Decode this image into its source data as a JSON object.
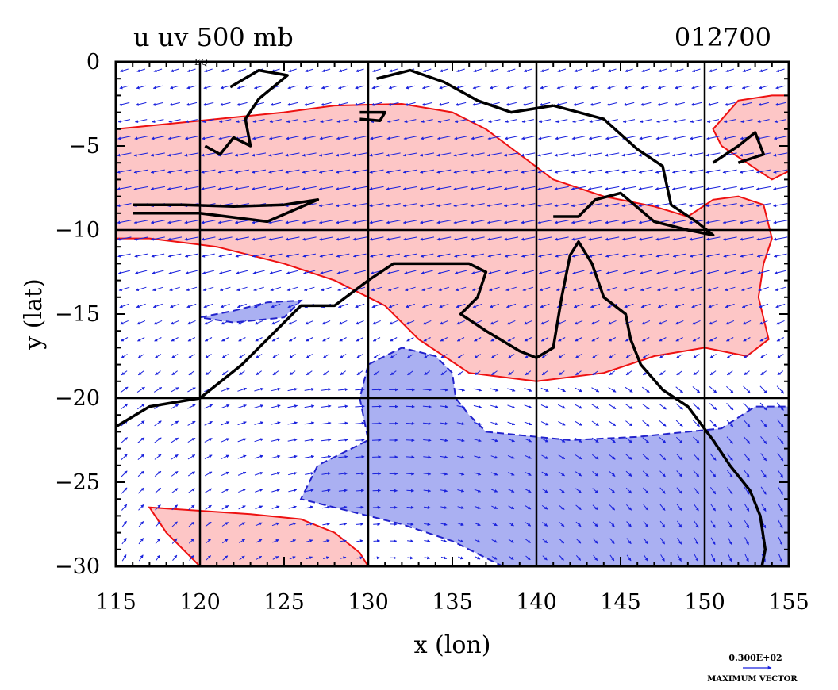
{
  "plot": {
    "title": "u uv 500 mb",
    "date": "012700",
    "xlabel": "x (lon)",
    "ylabel": "y (lat)",
    "grid_label": "EQ",
    "vector_value": "0.300E+02",
    "vector_caption": "MAXIMUM VECTOR"
  },
  "colors": {
    "positive_fill": "#fdc6c6",
    "positive_line": "#ee1111",
    "negative_fill": "#aab0f2",
    "negative_line": "#2222cc",
    "vector": "#1a22dd",
    "coast": "#000000"
  },
  "chart_data": {
    "type": "map",
    "x_ticks": [
      115,
      120,
      125,
      130,
      135,
      140,
      145,
      150,
      155
    ],
    "y_ticks": [
      0,
      -5,
      -10,
      -15,
      -20,
      -25,
      -30
    ],
    "x_range": [
      115,
      155
    ],
    "y_range": [
      -30,
      0
    ],
    "grid_lon": [
      120,
      130,
      140,
      150
    ],
    "grid_lat": [
      -10,
      -20
    ],
    "positive_regions": [
      [
        [
          115,
          -4
        ],
        [
          120,
          -3.5
        ],
        [
          125,
          -3
        ],
        [
          128,
          -2.6
        ],
        [
          132,
          -2.5
        ],
        [
          135,
          -3
        ],
        [
          137,
          -4
        ],
        [
          139,
          -5.5
        ],
        [
          141,
          -7
        ],
        [
          144,
          -8
        ],
        [
          147,
          -8.6
        ],
        [
          149,
          -9.2
        ],
        [
          150.5,
          -8.2
        ],
        [
          152,
          -8
        ],
        [
          153.5,
          -8.5
        ],
        [
          154,
          -10.5
        ],
        [
          153.5,
          -12
        ],
        [
          153.2,
          -14
        ],
        [
          153.8,
          -16.5
        ],
        [
          152.5,
          -17.5
        ],
        [
          150,
          -17
        ],
        [
          147,
          -17.5
        ],
        [
          144,
          -18.5
        ],
        [
          140,
          -19
        ],
        [
          136,
          -18.5
        ],
        [
          133,
          -16.5
        ],
        [
          131,
          -14.5
        ],
        [
          128,
          -13
        ],
        [
          125,
          -12
        ],
        [
          121,
          -11
        ],
        [
          117,
          -10.5
        ],
        [
          115,
          -10.5
        ]
      ],
      [
        [
          150.5,
          -4
        ],
        [
          152,
          -2.3
        ],
        [
          154,
          -2
        ],
        [
          155,
          -2
        ],
        [
          155,
          -6.5
        ],
        [
          154,
          -7
        ],
        [
          152.5,
          -6
        ],
        [
          151,
          -5
        ]
      ],
      [
        [
          117,
          -26.5
        ],
        [
          120,
          -26.7
        ],
        [
          123,
          -26.9
        ],
        [
          126,
          -27.2
        ],
        [
          128,
          -28
        ],
        [
          129.5,
          -29.2
        ],
        [
          130,
          -30
        ],
        [
          120,
          -30
        ],
        [
          118,
          -28
        ]
      ]
    ],
    "negative_regions": [
      [
        [
          130,
          -18
        ],
        [
          132,
          -17
        ],
        [
          134,
          -17.5
        ],
        [
          135,
          -18.5
        ],
        [
          135.2,
          -20
        ],
        [
          136,
          -21
        ],
        [
          137,
          -22
        ],
        [
          139,
          -22.2
        ],
        [
          142,
          -22.5
        ],
        [
          146,
          -22.3
        ],
        [
          149,
          -22
        ],
        [
          151,
          -21.8
        ],
        [
          153,
          -20.5
        ],
        [
          155,
          -20.5
        ],
        [
          155,
          -30
        ],
        [
          138,
          -30
        ],
        [
          135,
          -28.5
        ],
        [
          132,
          -27.5
        ],
        [
          128,
          -26.5
        ],
        [
          126,
          -26
        ],
        [
          127,
          -24
        ],
        [
          130,
          -22.5
        ],
        [
          129.5,
          -20
        ]
      ],
      [
        [
          120,
          -15.2
        ],
        [
          122,
          -14.8
        ],
        [
          124,
          -14.3
        ],
        [
          126,
          -14.2
        ],
        [
          125,
          -15.2
        ],
        [
          122,
          -15.5
        ]
      ]
    ],
    "coastlines": [
      [
        [
          115,
          -21.7
        ],
        [
          117,
          -20.5
        ],
        [
          120,
          -20
        ],
        [
          122.5,
          -18
        ],
        [
          124,
          -16.5
        ],
        [
          126,
          -14.5
        ],
        [
          128,
          -14.5
        ],
        [
          130,
          -13
        ],
        [
          131.5,
          -12
        ],
        [
          134,
          -12
        ],
        [
          136,
          -12
        ],
        [
          137,
          -12.5
        ],
        [
          136.5,
          -14
        ],
        [
          135.5,
          -15
        ],
        [
          137,
          -16
        ],
        [
          139,
          -17.2
        ],
        [
          140,
          -17.6
        ],
        [
          141,
          -17
        ],
        [
          141.5,
          -14
        ],
        [
          142,
          -11.5
        ],
        [
          142.5,
          -10.7
        ],
        [
          143.3,
          -12
        ],
        [
          144,
          -14
        ],
        [
          145.3,
          -15
        ],
        [
          145.6,
          -16.5
        ],
        [
          146.2,
          -18
        ],
        [
          147.5,
          -19.5
        ],
        [
          149,
          -20.5
        ],
        [
          150.5,
          -22.5
        ],
        [
          151.5,
          -24
        ],
        [
          152.7,
          -25.5
        ],
        [
          153.3,
          -27
        ],
        [
          153.6,
          -29
        ],
        [
          153.4,
          -30
        ]
      ],
      [
        [
          141,
          -2.6
        ],
        [
          144,
          -3.4
        ],
        [
          146,
          -5.2
        ],
        [
          147.5,
          -6.2
        ],
        [
          148,
          -8.5
        ],
        [
          149.5,
          -9.5
        ],
        [
          150.5,
          -10.3
        ],
        [
          149,
          -10
        ],
        [
          147,
          -9.5
        ],
        [
          145,
          -7.8
        ],
        [
          143.5,
          -8.2
        ],
        [
          142.5,
          -9.2
        ],
        [
          141,
          -9.2
        ]
      ],
      [
        [
          130.5,
          -1
        ],
        [
          132.5,
          -0.5
        ],
        [
          134.5,
          -1.2
        ],
        [
          136.5,
          -2.3
        ],
        [
          138.5,
          -3
        ],
        [
          141,
          -2.6
        ]
      ],
      [
        [
          129.5,
          -3
        ],
        [
          131,
          -3
        ],
        [
          130.7,
          -3.5
        ],
        [
          129.5,
          -3.4
        ]
      ],
      [
        [
          121.8,
          -1.5
        ],
        [
          123.5,
          -0.5
        ],
        [
          125.2,
          -0.8
        ],
        [
          123.5,
          -2.2
        ],
        [
          122.7,
          -3.4
        ],
        [
          123,
          -5
        ],
        [
          122,
          -4.5
        ],
        [
          121.2,
          -5.5
        ],
        [
          120.3,
          -5
        ]
      ],
      [
        [
          116,
          -8.5
        ],
        [
          119,
          -8.5
        ],
        [
          122,
          -8.6
        ],
        [
          125,
          -8.5
        ],
        [
          127,
          -8.2
        ],
        [
          124,
          -9.5
        ],
        [
          120,
          -9
        ],
        [
          116,
          -9
        ]
      ],
      [
        [
          150.5,
          -6
        ],
        [
          152,
          -5
        ],
        [
          153,
          -4.2
        ],
        [
          153.5,
          -5.5
        ],
        [
          152,
          -6
        ]
      ]
    ],
    "vector_grid": {
      "x_start": 115.5,
      "x_step": 1,
      "y_start": -0.5,
      "y_step": -1,
      "nx": 40,
      "ny": 30,
      "max_vector_ms": 30
    }
  }
}
